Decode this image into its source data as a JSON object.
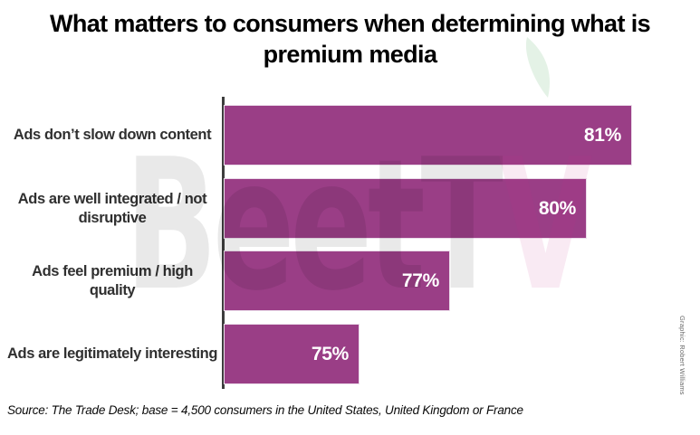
{
  "title_lines": [
    "What matters to consumers when determining what is",
    "premium media"
  ],
  "source": "Source: The Trade Desk; base = 4,500 consumers in the United States, United Kingdom or France",
  "credit": "Graphic: Robert Williams",
  "watermark": {
    "gray_text": "BeetT",
    "pink_text": "V"
  },
  "colors": {
    "bar_fill": "#9A3E86",
    "bar_border": "#EBDCEA",
    "axis": "#3D3D3D",
    "category_text": "#303030",
    "value_text": "#FFFFFF",
    "watermark_gray": "#E9E9E9",
    "watermark_pink": "#F6E8F2",
    "leaf_green": "#E4F2E6"
  },
  "chart_data": {
    "type": "bar",
    "orientation": "horizontal",
    "title": "What matters to consumers when determining what is premium media",
    "categories": [
      "Ads don’t slow down content",
      "Ads are well integrated / not disruptive",
      "Ads feel premium / high quality",
      "Ads are legitimately interesting"
    ],
    "category_lines": [
      [
        "Ads don’t slow down content",
        ""
      ],
      [
        "Ads are well integrated / not",
        "disruptive"
      ],
      [
        "Ads feel premium / high",
        "quality"
      ],
      [
        "Ads are legitimately interesting",
        ""
      ]
    ],
    "values": [
      81,
      80,
      77,
      75
    ],
    "value_labels": [
      "81%",
      "80%",
      "77%",
      "75%"
    ],
    "unit": "%",
    "xlim": [
      72,
      82.5
    ],
    "xlabel": "",
    "ylabel": "",
    "grid": false,
    "legend": false,
    "bar_label_position": "inside-end"
  }
}
